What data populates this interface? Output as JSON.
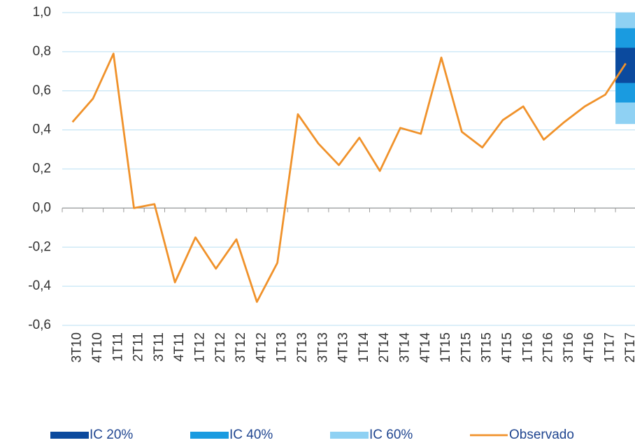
{
  "chart_data": {
    "type": "line",
    "categories": [
      "3T10",
      "4T10",
      "1T11",
      "2T11",
      "3T11",
      "4T11",
      "1T12",
      "2T12",
      "3T12",
      "4T12",
      "1T13",
      "2T13",
      "3T13",
      "4T13",
      "1T14",
      "2T14",
      "3T14",
      "4T14",
      "1T15",
      "2T15",
      "3T15",
      "4T15",
      "1T16",
      "2T16",
      "3T16",
      "4T16",
      "1T17",
      "2T17"
    ],
    "series": [
      {
        "name": "Observado",
        "color": "#f0922b",
        "values": [
          0.44,
          0.56,
          0.79,
          0.0,
          0.02,
          -0.38,
          -0.15,
          -0.31,
          -0.16,
          -0.48,
          -0.28,
          0.48,
          0.33,
          0.22,
          0.36,
          0.19,
          0.41,
          0.38,
          0.77,
          0.39,
          0.31,
          0.45,
          0.52,
          0.35,
          0.44,
          0.52,
          0.58,
          0.74
        ]
      }
    ],
    "bands": [
      {
        "name": "IC 60%",
        "color": "#8fd1f3",
        "low": [
          null,
          null,
          null,
          null,
          null,
          null,
          null,
          null,
          null,
          null,
          null,
          null,
          null,
          null,
          null,
          null,
          null,
          null,
          null,
          null,
          null,
          null,
          null,
          null,
          null,
          null,
          null,
          0.43
        ],
        "high": [
          null,
          null,
          null,
          null,
          null,
          null,
          null,
          null,
          null,
          null,
          null,
          null,
          null,
          null,
          null,
          null,
          null,
          null,
          null,
          null,
          null,
          null,
          null,
          null,
          null,
          null,
          null,
          1.0
        ]
      },
      {
        "name": "IC 40%",
        "color": "#1a9be0",
        "low": [
          null,
          null,
          null,
          null,
          null,
          null,
          null,
          null,
          null,
          null,
          null,
          null,
          null,
          null,
          null,
          null,
          null,
          null,
          null,
          null,
          null,
          null,
          null,
          null,
          null,
          null,
          null,
          0.54
        ],
        "high": [
          null,
          null,
          null,
          null,
          null,
          null,
          null,
          null,
          null,
          null,
          null,
          null,
          null,
          null,
          null,
          null,
          null,
          null,
          null,
          null,
          null,
          null,
          null,
          null,
          null,
          null,
          null,
          0.92
        ]
      },
      {
        "name": "IC 20%",
        "color": "#0b4a9e",
        "low": [
          null,
          null,
          null,
          null,
          null,
          null,
          null,
          null,
          null,
          null,
          null,
          null,
          null,
          null,
          null,
          null,
          null,
          null,
          null,
          null,
          null,
          null,
          null,
          null,
          null,
          null,
          null,
          0.64
        ],
        "high": [
          null,
          null,
          null,
          null,
          null,
          null,
          null,
          null,
          null,
          null,
          null,
          null,
          null,
          null,
          null,
          null,
          null,
          null,
          null,
          null,
          null,
          null,
          null,
          null,
          null,
          null,
          null,
          0.82
        ]
      }
    ],
    "ylim": [
      -0.6,
      1.0
    ],
    "yticks": [
      {
        "value": -0.6,
        "label": "-0,6"
      },
      {
        "value": -0.4,
        "label": "-0,4"
      },
      {
        "value": -0.2,
        "label": "-0,2"
      },
      {
        "value": 0,
        "label": "0,0"
      },
      {
        "value": 0.2,
        "label": "0,2"
      },
      {
        "value": 0.4,
        "label": "0,4"
      },
      {
        "value": 0.6,
        "label": "0,6"
      },
      {
        "value": 0.8,
        "label": "0,8"
      },
      {
        "value": 1.0,
        "label": "1,0"
      }
    ],
    "grid": true
  }
}
